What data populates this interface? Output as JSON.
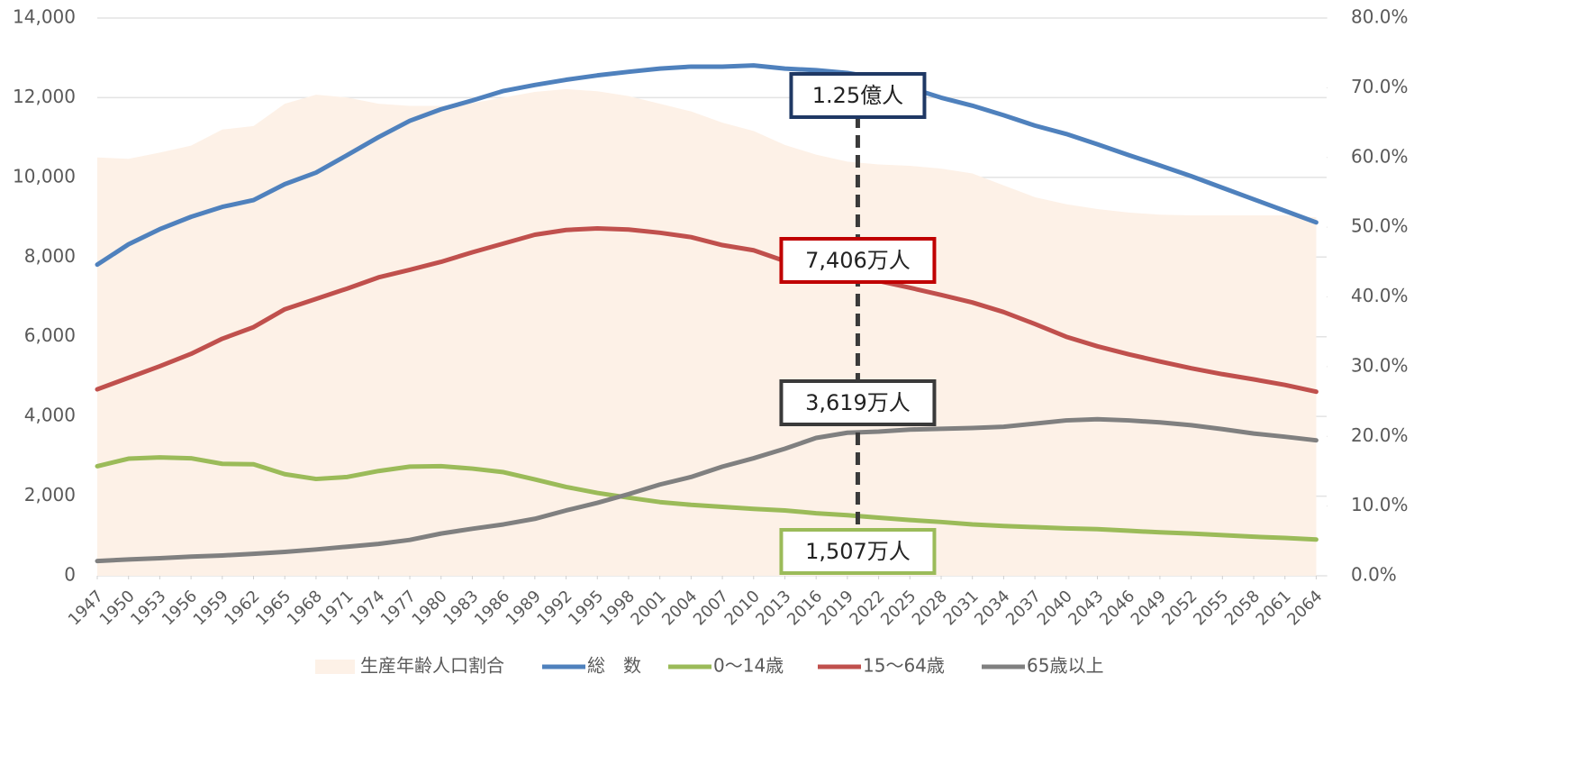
{
  "chart_data": {
    "type": "line",
    "x": [
      1947,
      1950,
      1953,
      1956,
      1959,
      1962,
      1965,
      1968,
      1971,
      1974,
      1977,
      1980,
      1983,
      1986,
      1989,
      1992,
      1995,
      1998,
      2001,
      2004,
      2007,
      2010,
      2013,
      2016,
      2019,
      2022,
      2025,
      2028,
      2031,
      2034,
      2037,
      2040,
      2043,
      2046,
      2049,
      2052,
      2055,
      2058,
      2061,
      2064
    ],
    "xlim": [
      1947,
      2065
    ],
    "xticks": [
      1947,
      1950,
      1953,
      1956,
      1959,
      1962,
      1965,
      1968,
      1971,
      1974,
      1977,
      1980,
      1983,
      1986,
      1989,
      1992,
      1995,
      1998,
      2001,
      2004,
      2007,
      2010,
      2013,
      2016,
      2019,
      2022,
      2025,
      2028,
      2031,
      2034,
      2037,
      2040,
      2043,
      2046,
      2049,
      2052,
      2055,
      2058,
      2061,
      2064
    ],
    "ylim": [
      0,
      14000
    ],
    "yticks": [
      0,
      {
        "value": 2000,
        "label": "2,000"
      },
      {
        "value": 4000,
        "label": "4,000"
      },
      {
        "value": 6000,
        "label": "6,000"
      },
      {
        "value": 8000,
        "label": "8,000"
      },
      {
        "value": 10000,
        "label": "10,000"
      },
      {
        "value": 12000,
        "label": "12,000"
      },
      {
        "value": 14000,
        "label": "14,000"
      }
    ],
    "y2lim": [
      0,
      80
    ],
    "y2ticks": [
      {
        "value": 0,
        "label": "0.0%"
      },
      {
        "value": 10,
        "label": "10.0%"
      },
      {
        "value": 20,
        "label": "20.0%"
      },
      {
        "value": 30,
        "label": "30.0%"
      },
      {
        "value": 40,
        "label": "40.0%"
      },
      {
        "value": 50,
        "label": "50.0%"
      },
      {
        "value": 60,
        "label": "60.0%"
      },
      {
        "value": 70,
        "label": "70.0%"
      },
      {
        "value": 80,
        "label": "80.0%"
      }
    ],
    "grid": true,
    "legend": "bottom",
    "series": [
      {
        "name": "生産年齢人口割合",
        "style": "area",
        "axis": "y2",
        "color": "#fdf1e7",
        "values": [
          60.0,
          59.8,
          60.7,
          61.7,
          64.0,
          64.5,
          67.7,
          69.0,
          68.6,
          67.7,
          67.4,
          67.4,
          67.8,
          68.6,
          69.4,
          69.8,
          69.5,
          68.8,
          67.7,
          66.6,
          65.0,
          63.8,
          61.8,
          60.4,
          59.4,
          59.0,
          58.8,
          58.4,
          57.7,
          56.0,
          54.3,
          53.3,
          52.6,
          52.1,
          51.8,
          51.7,
          51.7,
          51.7,
          51.7,
          51.4
        ]
      },
      {
        "name": "総　数",
        "color": "#4f81bd",
        "values": [
          7810,
          8320,
          8700,
          9010,
          9260,
          9430,
          9830,
          10120,
          10560,
          11010,
          11420,
          11710,
          11930,
          12170,
          12320,
          12450,
          12560,
          12650,
          12730,
          12780,
          12780,
          12810,
          12730,
          12690,
          12620,
          12490,
          12250,
          12000,
          11800,
          11560,
          11300,
          11090,
          10830,
          10560,
          10300,
          10030,
          9740,
          9450,
          9160,
          8870
        ]
      },
      {
        "name": "0〜14歳",
        "color": "#9bbb59",
        "values": [
          2750,
          2940,
          2970,
          2950,
          2810,
          2800,
          2550,
          2430,
          2480,
          2630,
          2740,
          2750,
          2690,
          2600,
          2420,
          2230,
          2080,
          1960,
          1850,
          1780,
          1730,
          1680,
          1640,
          1570,
          1520,
          1460,
          1400,
          1350,
          1290,
          1250,
          1220,
          1190,
          1170,
          1130,
          1090,
          1060,
          1020,
          980,
          950,
          910
        ]
      },
      {
        "name": "15〜64歳",
        "color": "#c0504d",
        "values": [
          4680,
          4970,
          5260,
          5570,
          5950,
          6240,
          6690,
          6950,
          7210,
          7490,
          7680,
          7880,
          8120,
          8340,
          8560,
          8680,
          8720,
          8690,
          8610,
          8500,
          8300,
          8170,
          7900,
          7660,
          7510,
          7400,
          7230,
          7050,
          6860,
          6620,
          6320,
          6000,
          5760,
          5560,
          5380,
          5210,
          5060,
          4930,
          4790,
          4620
        ]
      },
      {
        "name": "65歳以上",
        "color": "#808080",
        "values": [
          370,
          410,
          440,
          480,
          510,
          550,
          600,
          660,
          730,
          800,
          900,
          1060,
          1180,
          1290,
          1430,
          1640,
          1830,
          2050,
          2290,
          2480,
          2740,
          2950,
          3190,
          3460,
          3590,
          3620,
          3670,
          3690,
          3710,
          3740,
          3820,
          3900,
          3930,
          3900,
          3850,
          3780,
          3680,
          3570,
          3490,
          3400
        ]
      }
    ],
    "annotation_x": 2020,
    "annotations": [
      {
        "text": "1.25億人",
        "color": "#1f3864"
      },
      {
        "text": "7,406万人",
        "color": "#c00000"
      },
      {
        "text": "3,619万人",
        "color": "#3a3a3a"
      },
      {
        "text": "1,507万人",
        "color": "#9bbb59"
      }
    ]
  }
}
